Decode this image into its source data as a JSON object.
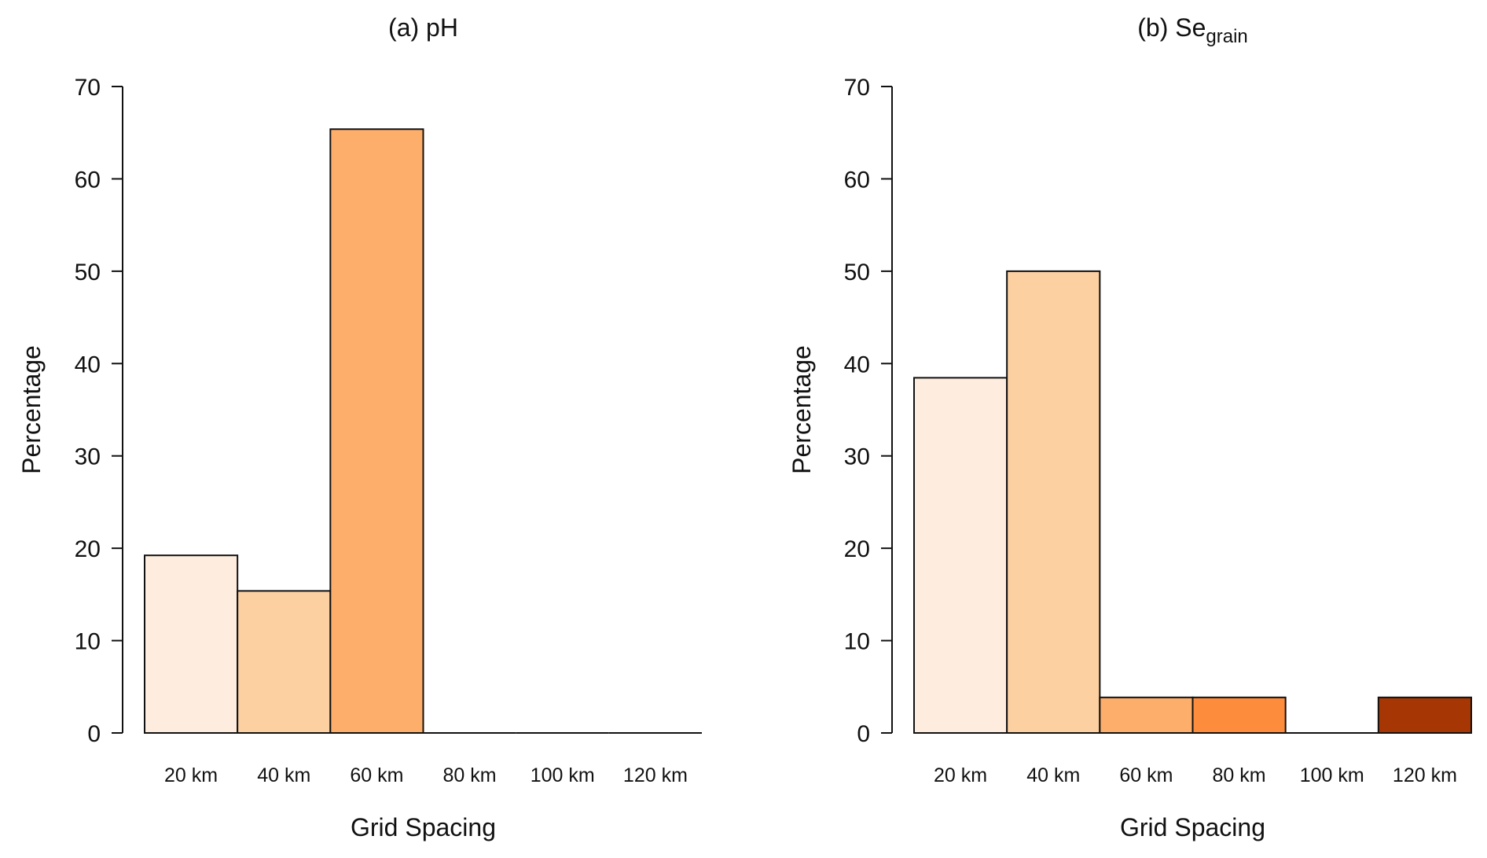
{
  "chart_data": [
    {
      "type": "bar",
      "title": "(a) pH",
      "title_main": "(a) pH",
      "title_sub": "",
      "xlabel": "Grid Spacing",
      "ylabel": "Percentage",
      "categories": [
        "20 km",
        "40 km",
        "60 km",
        "80 km",
        "100 km",
        "120 km"
      ],
      "values": [
        19.23,
        15.38,
        65.38,
        0,
        0,
        0
      ],
      "colors": [
        "#FEEDDE",
        "#FDD0A2",
        "#FDAE6B",
        "#FD8D3C",
        "#E6550D",
        "#A63603"
      ],
      "ylim": [
        0,
        70
      ],
      "yticks": [
        0,
        10,
        20,
        30,
        40,
        50,
        60,
        70
      ],
      "grid": false
    },
    {
      "type": "bar",
      "title": "(b) Se_grain",
      "title_main": "(b) Se",
      "title_sub": "grain",
      "xlabel": "Grid Spacing",
      "ylabel": "Percentage",
      "categories": [
        "20 km",
        "40 km",
        "60 km",
        "80 km",
        "100 km",
        "120 km"
      ],
      "values": [
        38.46,
        50.0,
        3.85,
        3.85,
        0,
        3.85
      ],
      "colors": [
        "#FEEDDE",
        "#FDD0A2",
        "#FDAE6B",
        "#FD8D3C",
        "#E6550D",
        "#A63603"
      ],
      "ylim": [
        0,
        70
      ],
      "yticks": [
        0,
        10,
        20,
        30,
        40,
        50,
        60,
        70
      ],
      "grid": false
    }
  ]
}
